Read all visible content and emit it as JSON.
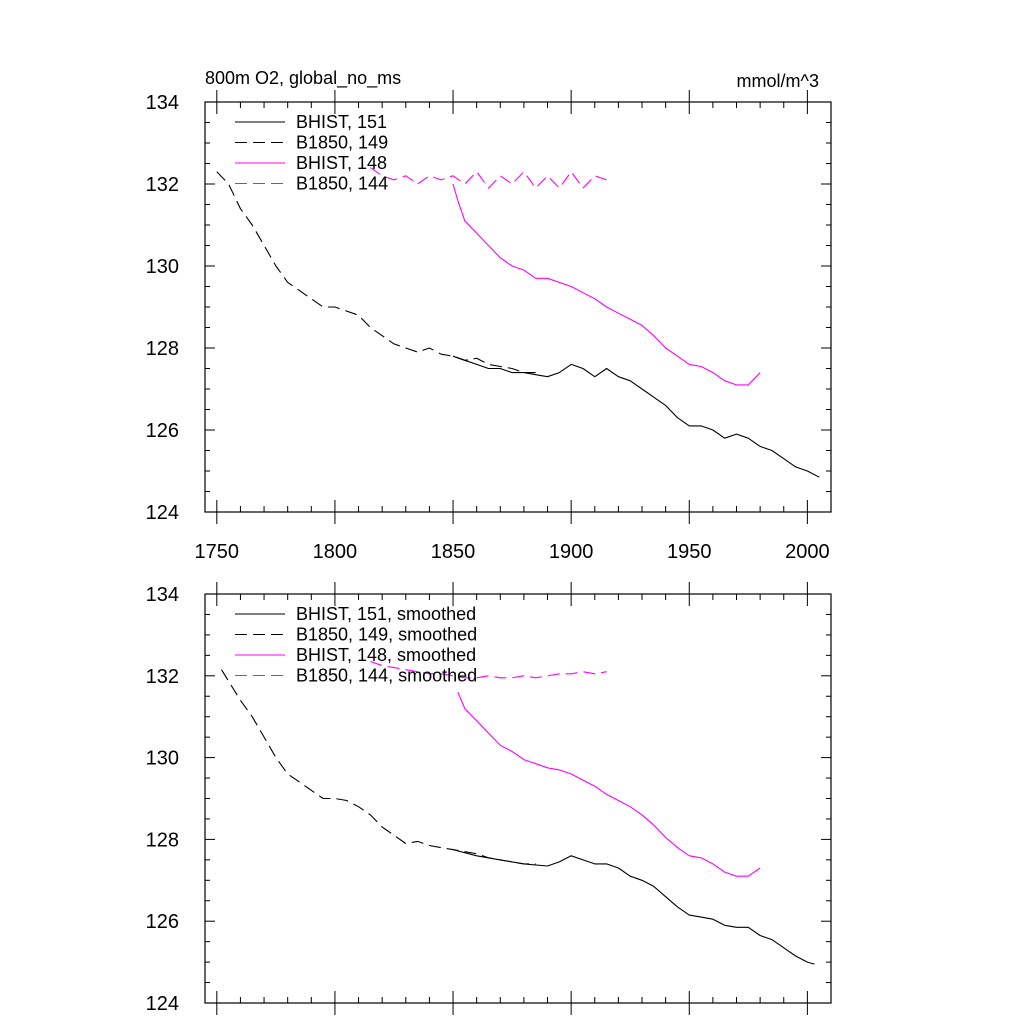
{
  "chart_data": [
    {
      "type": "line",
      "title": "800m O2, global_no_ms",
      "units": "mmol/m^3",
      "xlim": [
        1745,
        2010
      ],
      "ylim": [
        124,
        134
      ],
      "xticks": [
        1750,
        1800,
        1850,
        1900,
        1950,
        2000
      ],
      "yticks": [
        124,
        126,
        128,
        130,
        132,
        134
      ],
      "show_x_tick_labels": true,
      "grid": false,
      "legend_position": "top-left",
      "series": [
        {
          "name": "BHIST, 151",
          "color": "#000000",
          "dash": "solid",
          "x": [
            1850,
            1855,
            1860,
            1865,
            1870,
            1875,
            1880,
            1885,
            1890,
            1895,
            1900,
            1905,
            1910,
            1915,
            1920,
            1925,
            1930,
            1935,
            1940,
            1945,
            1950,
            1955,
            1960,
            1965,
            1970,
            1975,
            1980,
            1985,
            1990,
            1995,
            2000,
            2005
          ],
          "y": [
            127.8,
            127.7,
            127.6,
            127.5,
            127.5,
            127.4,
            127.4,
            127.35,
            127.3,
            127.4,
            127.6,
            127.5,
            127.3,
            127.5,
            127.3,
            127.2,
            127.0,
            126.8,
            126.6,
            126.3,
            126.1,
            126.1,
            126.0,
            125.8,
            125.9,
            125.8,
            125.6,
            125.5,
            125.3,
            125.1,
            125.0,
            124.85
          ]
        },
        {
          "name": "B1850, 149",
          "color": "#000000",
          "dash": "long-dash",
          "x": [
            1750,
            1755,
            1760,
            1765,
            1770,
            1775,
            1780,
            1785,
            1790,
            1795,
            1800,
            1805,
            1810,
            1815,
            1820,
            1825,
            1830,
            1835,
            1840,
            1845,
            1850,
            1855,
            1860,
            1865,
            1870,
            1875,
            1880,
            1885
          ],
          "y": [
            132.3,
            132.0,
            131.4,
            131.0,
            130.5,
            130.0,
            129.6,
            129.4,
            129.2,
            129.0,
            129.0,
            128.9,
            128.8,
            128.5,
            128.3,
            128.1,
            128.0,
            127.9,
            128.0,
            127.85,
            127.8,
            127.7,
            127.75,
            127.6,
            127.55,
            127.5,
            127.4,
            127.4
          ]
        },
        {
          "name": "BHIST, 148",
          "color": "#ff00ff",
          "dash": "solid",
          "x": [
            1850,
            1852,
            1855,
            1860,
            1865,
            1870,
            1875,
            1880,
            1885,
            1890,
            1895,
            1900,
            1905,
            1910,
            1915,
            1920,
            1925,
            1930,
            1935,
            1940,
            1945,
            1950,
            1955,
            1960,
            1965,
            1970,
            1975,
            1980
          ],
          "y": [
            132.0,
            131.6,
            131.1,
            130.8,
            130.5,
            130.2,
            130.0,
            129.9,
            129.7,
            129.7,
            129.6,
            129.5,
            129.35,
            129.2,
            129.0,
            128.85,
            128.7,
            128.55,
            128.3,
            128.0,
            127.8,
            127.6,
            127.55,
            127.4,
            127.2,
            127.1,
            127.1,
            127.4
          ]
        },
        {
          "name": "B1850, 144",
          "color": "#ff00ff",
          "dash": "long-dash",
          "x": [
            1815,
            1820,
            1825,
            1830,
            1835,
            1840,
            1845,
            1850,
            1855,
            1860,
            1865,
            1870,
            1875,
            1880,
            1885,
            1890,
            1895,
            1900,
            1905,
            1910,
            1915
          ],
          "y": [
            132.4,
            132.2,
            132.1,
            132.2,
            132.0,
            132.2,
            132.1,
            132.2,
            132.0,
            132.3,
            131.9,
            132.2,
            132.0,
            132.3,
            131.9,
            132.2,
            131.9,
            132.3,
            131.9,
            132.2,
            132.1
          ]
        }
      ]
    },
    {
      "type": "line",
      "title": "",
      "units": "",
      "xlim": [
        1745,
        2010
      ],
      "ylim": [
        124,
        134
      ],
      "xticks": [
        1750,
        1800,
        1850,
        1900,
        1950,
        2000
      ],
      "yticks": [
        124,
        126,
        128,
        130,
        132,
        134
      ],
      "show_x_tick_labels": false,
      "grid": false,
      "legend_position": "top-left",
      "series": [
        {
          "name": "BHIST, 151, smoothed",
          "color": "#000000",
          "dash": "solid",
          "x": [
            1850,
            1860,
            1870,
            1880,
            1890,
            1895,
            1900,
            1905,
            1910,
            1915,
            1920,
            1925,
            1930,
            1935,
            1940,
            1945,
            1950,
            1955,
            1960,
            1965,
            1970,
            1975,
            1980,
            1985,
            1990,
            1995,
            2000,
            2003
          ],
          "y": [
            127.75,
            127.6,
            127.5,
            127.4,
            127.35,
            127.45,
            127.6,
            127.5,
            127.4,
            127.4,
            127.3,
            127.1,
            127.0,
            126.85,
            126.6,
            126.35,
            126.15,
            126.1,
            126.05,
            125.9,
            125.85,
            125.85,
            125.65,
            125.55,
            125.35,
            125.15,
            125.0,
            124.95
          ]
        },
        {
          "name": "B1850, 149, smoothed",
          "color": "#000000",
          "dash": "long-dash",
          "x": [
            1752,
            1760,
            1765,
            1770,
            1775,
            1780,
            1785,
            1790,
            1795,
            1800,
            1805,
            1810,
            1815,
            1820,
            1825,
            1830,
            1835,
            1840,
            1845,
            1850,
            1855,
            1860,
            1865,
            1870,
            1875,
            1880,
            1885
          ],
          "y": [
            132.15,
            131.4,
            131.0,
            130.5,
            130.0,
            129.6,
            129.4,
            129.2,
            129.0,
            129.0,
            128.95,
            128.8,
            128.6,
            128.3,
            128.1,
            127.9,
            127.95,
            127.85,
            127.8,
            127.75,
            127.7,
            127.65,
            127.55,
            127.5,
            127.45,
            127.4,
            127.4
          ]
        },
        {
          "name": "BHIST, 148, smoothed",
          "color": "#ff00ff",
          "dash": "solid",
          "x": [
            1852,
            1855,
            1860,
            1865,
            1870,
            1875,
            1880,
            1885,
            1890,
            1895,
            1900,
            1905,
            1910,
            1915,
            1920,
            1925,
            1930,
            1935,
            1940,
            1945,
            1950,
            1955,
            1960,
            1965,
            1970,
            1975,
            1980
          ],
          "y": [
            131.6,
            131.2,
            130.9,
            130.6,
            130.3,
            130.15,
            129.95,
            129.85,
            129.75,
            129.7,
            129.6,
            129.45,
            129.3,
            129.1,
            128.95,
            128.8,
            128.6,
            128.35,
            128.05,
            127.8,
            127.6,
            127.55,
            127.4,
            127.2,
            127.1,
            127.1,
            127.3
          ]
        },
        {
          "name": "B1850, 144, smoothed",
          "color": "#ff00ff",
          "dash": "long-dash",
          "x": [
            1815,
            1820,
            1825,
            1830,
            1835,
            1840,
            1845,
            1850,
            1855,
            1860,
            1865,
            1870,
            1875,
            1880,
            1885,
            1890,
            1895,
            1900,
            1905,
            1910,
            1915
          ],
          "y": [
            132.35,
            132.25,
            132.2,
            132.15,
            132.1,
            132.05,
            132.05,
            132.0,
            131.95,
            131.95,
            132.0,
            131.95,
            131.95,
            132.0,
            131.95,
            132.0,
            132.05,
            132.05,
            132.1,
            132.05,
            132.1
          ]
        }
      ]
    }
  ]
}
